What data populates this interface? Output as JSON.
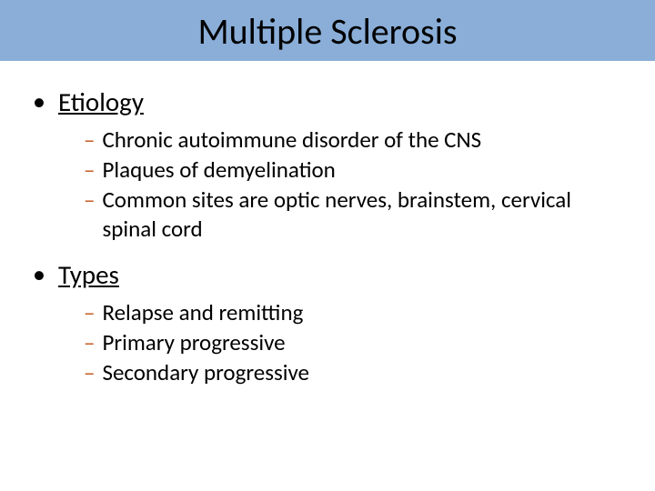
{
  "title": "Multiple Sclerosis",
  "colors": {
    "title_bg": "#8aaed8",
    "dash": "#c5602a",
    "text": "#000000",
    "background": "#ffffff"
  },
  "typography": {
    "title_fontsize": 40,
    "level1_fontsize": 29,
    "level2_fontsize": 25,
    "font_family": "Calibri"
  },
  "sections": [
    {
      "heading": "Etiology",
      "items": [
        "Chronic autoimmune disorder of the CNS",
        "Plaques of demyelination",
        "Common sites are optic nerves, brainstem, cervical spinal cord"
      ]
    },
    {
      "heading": "Types",
      "items": [
        "Relapse and remitting",
        "Primary progressive",
        "Secondary progressive"
      ]
    }
  ]
}
